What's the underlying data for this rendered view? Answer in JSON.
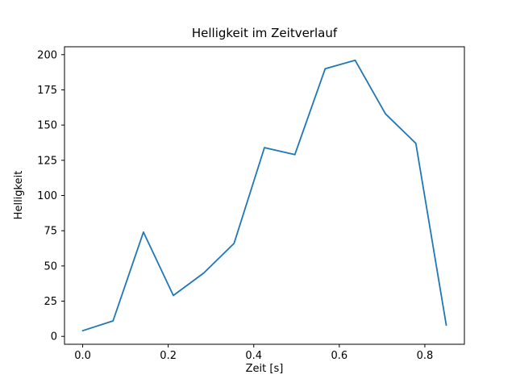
{
  "chart_data": {
    "type": "line",
    "title": "Helligkeit im Zeitverlauf",
    "xlabel": "Zeit [s]",
    "ylabel": "Helligkeit",
    "x": [
      0.0,
      0.071,
      0.142,
      0.212,
      0.283,
      0.354,
      0.425,
      0.496,
      0.567,
      0.637,
      0.708,
      0.779,
      0.85
    ],
    "y": [
      4,
      11,
      74,
      29,
      45,
      66,
      134,
      129,
      190,
      196,
      158,
      137,
      8
    ],
    "xlim": [
      -0.0425,
      0.8925
    ],
    "ylim": [
      -5.6,
      205.6
    ],
    "xticks": [
      0.0,
      0.2,
      0.4,
      0.6,
      0.8
    ],
    "xtick_labels": [
      "0.0",
      "0.2",
      "0.4",
      "0.6",
      "0.8"
    ],
    "yticks": [
      0,
      25,
      50,
      75,
      100,
      125,
      150,
      175,
      200
    ],
    "ytick_labels": [
      "0",
      "25",
      "50",
      "75",
      "100",
      "125",
      "150",
      "175",
      "200"
    ],
    "line_color": "#1f77b4",
    "spine_color": "#000000",
    "background_color": "#ffffff",
    "grid": false,
    "legend_position": "none"
  }
}
